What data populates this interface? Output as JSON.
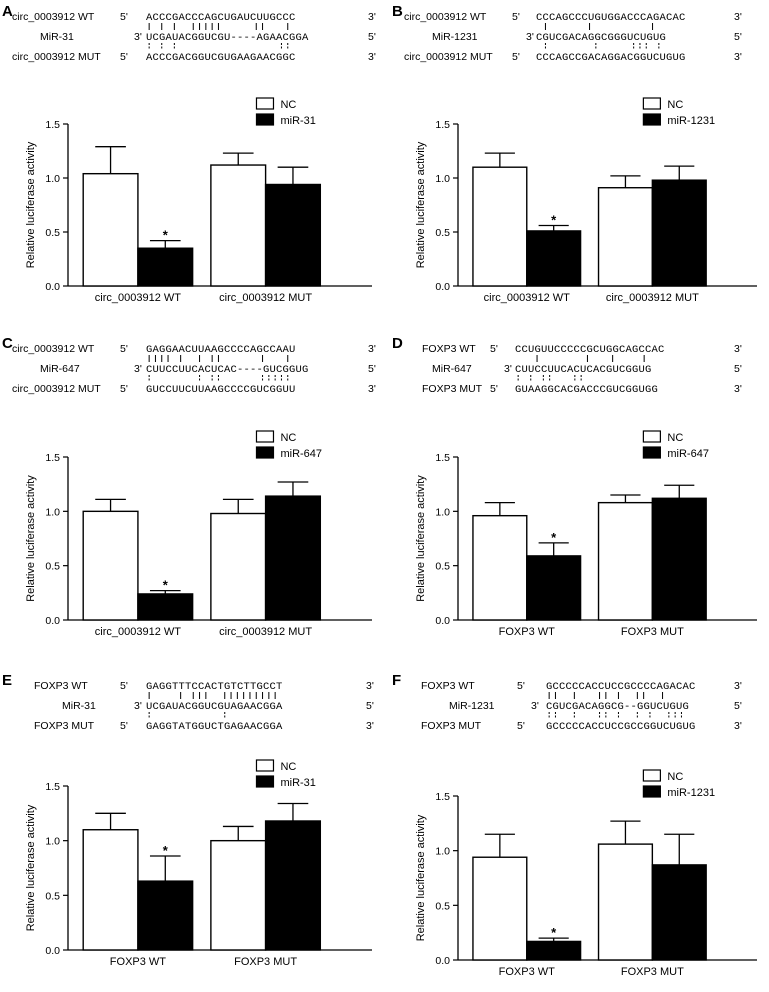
{
  "panels": [
    {
      "letter": "A",
      "sequences": [
        {
          "label": "circ_0003912 WT",
          "end5": "5'",
          "seq": "ACCCGACCCAGCUGAUCUUGCCC",
          "end3": "3'"
        },
        {
          "label": "MiR-31",
          "end5": "3'",
          "seq": "UCGAUACGGUCGU----AGAACGGA",
          "end3": "5'"
        },
        {
          "label": "circ_0003912 MUT",
          "end5": "5'",
          "seq": "ACCCGACGGUCGUGAAGAACGGC",
          "end3": "3'"
        }
      ]
    },
    {
      "letter": "B",
      "sequences": [
        {
          "label": "circ_0003912 WT",
          "end5": "5'",
          "seq": "CCCAGCCCUGUGGACCCAGACAC",
          "end3": "3'"
        },
        {
          "label": "MiR-1231",
          "end5": "3'",
          "seq": "CGUCGACAGGCGGGUCUGUG",
          "end3": "5'"
        },
        {
          "label": "circ_0003912 MUT",
          "end5": "5'",
          "seq": "CCCAGCCGACAGGACGGUCUGUG",
          "end3": "3'"
        }
      ]
    },
    {
      "letter": "C",
      "sequences": [
        {
          "label": "circ_0003912 WT",
          "end5": "5'",
          "seq": "GAGGAACUUAAGCCCCAGCCAAU",
          "end3": "3'"
        },
        {
          "label": "MiR-647",
          "end5": "3'",
          "seq": "CUUCCUUCACUCAC----GUCGGUG",
          "end3": "5'"
        },
        {
          "label": "circ_0003912 MUT",
          "end5": "5'",
          "seq": "GUCCUUCUUAAGCCCCGUCGGUU",
          "end3": "3'"
        }
      ]
    },
    {
      "letter": "D",
      "sequences": [
        {
          "label": "FOXP3 WT",
          "end5": "5'",
          "seq": "CCUGUUCCCCCGCUGGCAGCCAC",
          "end3": "3'"
        },
        {
          "label": "MiR-647",
          "end5": "3'",
          "seq": "CUUCCUUCACUCACGUCGGUG",
          "end3": "5'"
        },
        {
          "label": "FOXP3 MUT",
          "end5": "5'",
          "seq": "GUAAGGCACGACCCGUCGGUGG",
          "end3": "3'"
        }
      ]
    },
    {
      "letter": "E",
      "sequences": [
        {
          "label": "FOXP3 WT",
          "end5": "5'",
          "seq": "GAGGTTTCCACTGTCTTGCCT",
          "end3": "3'"
        },
        {
          "label": "MiR-31",
          "end5": "3'",
          "seq": "UCGAUACGGUCGUAGAACGGA",
          "end3": "5'"
        },
        {
          "label": "FOXP3 MUT",
          "end5": "5'",
          "seq": "GAGGTATGGUCTGAGAACGGA",
          "end3": "3'"
        }
      ]
    },
    {
      "letter": "F",
      "sequences": [
        {
          "label": "FOXP3 WT",
          "end5": "5'",
          "seq": "GCCCCCACCUCCGCCCCAGACAC",
          "end3": "3'"
        },
        {
          "label": "MiR-1231",
          "end5": "3'",
          "seq": "CGUCGACAGGCG--GGUCUGUG",
          "end3": "5'"
        },
        {
          "label": "FOXP3 MUT",
          "end5": "5'",
          "seq": "GCCCCCACCUCCGCCGGUCUGUG",
          "end3": "3'"
        }
      ]
    }
  ],
  "chart_data": [
    {
      "type": "bar",
      "panel": "A",
      "categories": [
        "circ_0003912 WT",
        "circ_0003912 MUT"
      ],
      "series": [
        {
          "name": "NC",
          "values": [
            1.04,
            1.12
          ],
          "errors": [
            0.25,
            0.11
          ]
        },
        {
          "name": "miR-31",
          "values": [
            0.35,
            0.94
          ],
          "errors": [
            0.07,
            0.16
          ]
        }
      ],
      "significance": [
        "*",
        ""
      ],
      "ylabel": "Relative luciferase activity",
      "ylim": [
        0,
        1.5
      ],
      "yticks": [
        "0.0",
        "0.5",
        "1.0",
        "1.5"
      ],
      "legend": "top-right"
    },
    {
      "type": "bar",
      "panel": "B",
      "categories": [
        "circ_0003912 WT",
        "circ_0003912 MUT"
      ],
      "series": [
        {
          "name": "NC",
          "values": [
            1.1,
            0.91
          ],
          "errors": [
            0.13,
            0.11
          ]
        },
        {
          "name": "miR-1231",
          "values": [
            0.51,
            0.98
          ],
          "errors": [
            0.05,
            0.13
          ]
        }
      ],
      "significance": [
        "*",
        ""
      ],
      "ylabel": "Relative luciferase activity",
      "ylim": [
        0,
        1.5
      ],
      "yticks": [
        "0.0",
        "0.5",
        "1.0",
        "1.5"
      ],
      "legend": "top-right"
    },
    {
      "type": "bar",
      "panel": "C",
      "categories": [
        "circ_0003912 WT",
        "circ_0003912 MUT"
      ],
      "series": [
        {
          "name": "NC",
          "values": [
            1.0,
            0.98
          ],
          "errors": [
            0.11,
            0.13
          ]
        },
        {
          "name": "miR-647",
          "values": [
            0.24,
            1.14
          ],
          "errors": [
            0.03,
            0.13
          ]
        }
      ],
      "significance": [
        "*",
        ""
      ],
      "ylabel": "Relative luciferase activity",
      "ylim": [
        0,
        1.5
      ],
      "yticks": [
        "0.0",
        "0.5",
        "1.0",
        "1.5"
      ],
      "legend": "top-right"
    },
    {
      "type": "bar",
      "panel": "D",
      "categories": [
        "FOXP3 WT",
        "FOXP3 MUT"
      ],
      "series": [
        {
          "name": "NC",
          "values": [
            0.96,
            1.08
          ],
          "errors": [
            0.12,
            0.07
          ]
        },
        {
          "name": "miR-647",
          "values": [
            0.59,
            1.12
          ],
          "errors": [
            0.12,
            0.12
          ]
        }
      ],
      "significance": [
        "*",
        ""
      ],
      "ylabel": "Relative luciferase activity",
      "ylim": [
        0,
        1.5
      ],
      "yticks": [
        "0.0",
        "0.5",
        "1.0",
        "1.5"
      ],
      "legend": "top-right"
    },
    {
      "type": "bar",
      "panel": "E",
      "categories": [
        "FOXP3 WT",
        "FOXP3 MUT"
      ],
      "series": [
        {
          "name": "NC",
          "values": [
            1.1,
            1.0
          ],
          "errors": [
            0.15,
            0.13
          ]
        },
        {
          "name": "miR-31",
          "values": [
            0.63,
            1.18
          ],
          "errors": [
            0.23,
            0.16
          ]
        }
      ],
      "significance": [
        "*",
        ""
      ],
      "ylabel": "Relative luciferase activity",
      "ylim": [
        0,
        1.5
      ],
      "yticks": [
        "0.0",
        "0.5",
        "1.0",
        "1.5"
      ],
      "legend": "top-right"
    },
    {
      "type": "bar",
      "panel": "F",
      "categories": [
        "FOXP3 WT",
        "FOXP3 MUT"
      ],
      "series": [
        {
          "name": "NC",
          "values": [
            0.94,
            1.06
          ],
          "errors": [
            0.21,
            0.21
          ]
        },
        {
          "name": "miR-1231",
          "values": [
            0.17,
            0.87
          ],
          "errors": [
            0.03,
            0.28
          ]
        }
      ],
      "significance": [
        "*",
        ""
      ],
      "ylabel": "Relative luciferase activity",
      "ylim": [
        0,
        1.5
      ],
      "yticks": [
        "0.0",
        "0.5",
        "1.0",
        "1.5"
      ],
      "legend": "top-right"
    }
  ]
}
